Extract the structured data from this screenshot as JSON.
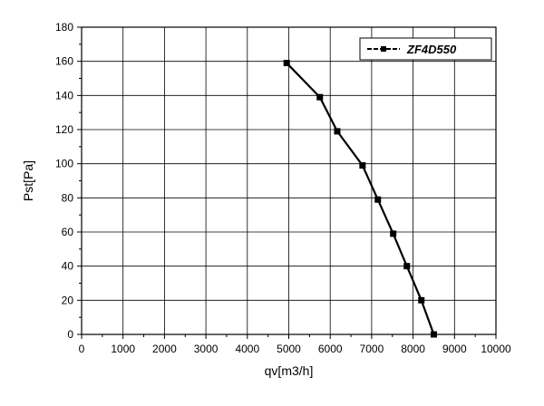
{
  "chart_data": {
    "type": "line",
    "title": "",
    "xlabel": "qv[m3/h]",
    "ylabel": "Pst[Pa]",
    "xlim": [
      0,
      10000
    ],
    "ylim": [
      0,
      180
    ],
    "x_ticks": [
      0,
      1000,
      2000,
      3000,
      4000,
      5000,
      6000,
      7000,
      8000,
      9000,
      10000
    ],
    "y_ticks": [
      0,
      20,
      40,
      60,
      80,
      100,
      120,
      140,
      160,
      180
    ],
    "grid": true,
    "legend_position": "top-right",
    "series": [
      {
        "name": "ZF4D550",
        "color": "#000000",
        "marker": "square",
        "x": [
          4950,
          5750,
          6170,
          6780,
          7150,
          7520,
          7850,
          8200,
          8500
        ],
        "y": [
          159,
          139,
          119,
          99,
          79,
          59,
          40,
          20,
          0
        ]
      }
    ]
  }
}
